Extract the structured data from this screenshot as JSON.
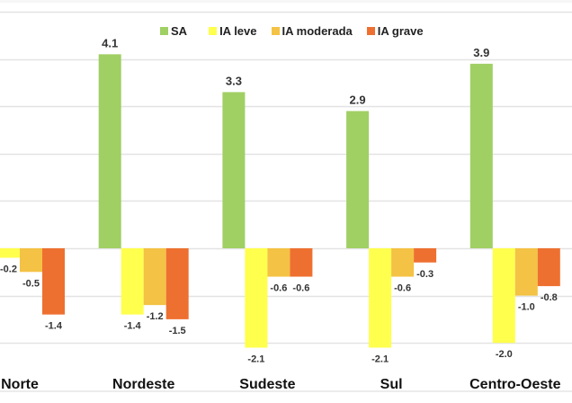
{
  "chart_data": {
    "type": "bar",
    "title": "",
    "xlabel": "",
    "ylabel": "",
    "ylim": [
      -3,
      5
    ],
    "grid": true,
    "legend_position": "top",
    "categories": [
      "Norte",
      "Nordeste",
      "Sudeste",
      "Sul",
      "Centro-Oeste"
    ],
    "series": [
      {
        "name": "SA",
        "color": "#a0cf63",
        "values": [
          null,
          4.1,
          3.3,
          2.9,
          3.9
        ]
      },
      {
        "name": "IA leve",
        "color": "#ffff4d",
        "values": [
          -0.2,
          -1.4,
          -2.1,
          -2.1,
          -2.0
        ]
      },
      {
        "name": "IA moderada",
        "color": "#f4c244",
        "values": [
          -0.5,
          -1.2,
          -0.6,
          -0.6,
          -1.0
        ]
      },
      {
        "name": "IA grave",
        "color": "#ee7030",
        "values": [
          -1.4,
          -1.5,
          -0.6,
          -0.3,
          -0.8
        ]
      }
    ],
    "data_labels": [
      [
        "",
        "-0.2",
        "-0.5",
        "-1.4"
      ],
      [
        "4.1",
        "-1.4",
        "-1.2",
        "-1.5"
      ],
      [
        "3.3",
        "-2.1",
        "-0.6",
        "-0.6"
      ],
      [
        "2.9",
        "-2.1",
        "-0.6",
        "-0.3"
      ],
      [
        "3.9",
        "-2.0",
        "-1.0",
        "-0.8"
      ]
    ]
  }
}
